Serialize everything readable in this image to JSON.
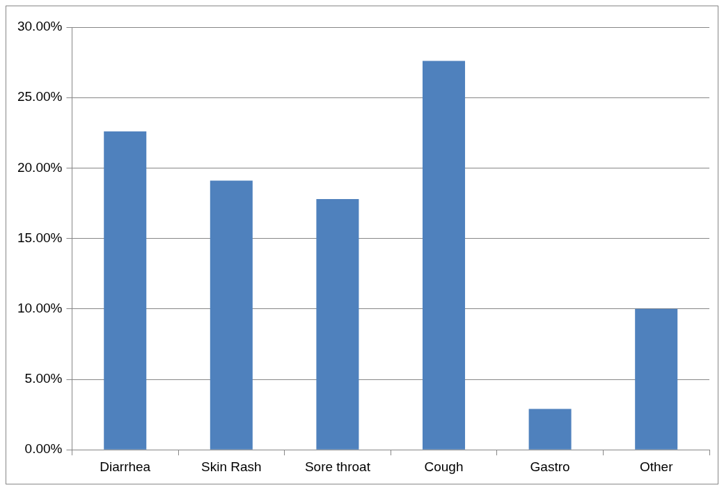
{
  "chart_data": {
    "type": "bar",
    "categories": [
      "Diarrhea",
      "Skin Rash",
      "Sore throat",
      "Cough",
      "Gastro",
      "Other"
    ],
    "values": [
      22.6,
      19.1,
      17.8,
      27.6,
      2.9,
      10.0
    ],
    "color": "#4f81bd",
    "ylim": [
      0,
      30
    ],
    "yticks": [
      {
        "value": 0,
        "label": "0.00%"
      },
      {
        "value": 5,
        "label": "5.00%"
      },
      {
        "value": 10,
        "label": "10.00%"
      },
      {
        "value": 15,
        "label": "15.00%"
      },
      {
        "value": 20,
        "label": "20.00%"
      },
      {
        "value": 25,
        "label": "25.00%"
      },
      {
        "value": 30,
        "label": "30.00%"
      }
    ],
    "grid": "y",
    "legend": false
  }
}
